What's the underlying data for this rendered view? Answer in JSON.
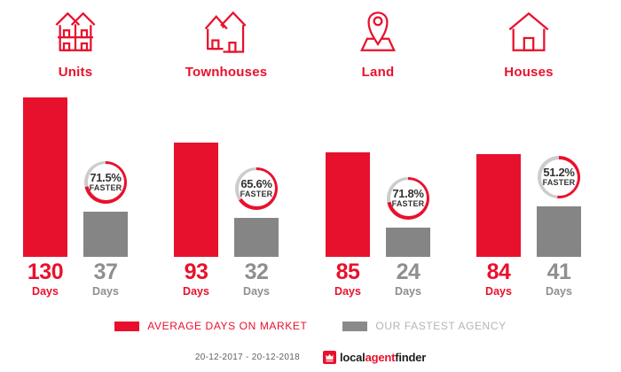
{
  "chart_data": {
    "type": "bar",
    "title": "",
    "categories": [
      "Units",
      "Townhouses",
      "Land",
      "Houses"
    ],
    "series": [
      {
        "name": "AVERAGE DAYS ON MARKET",
        "color": "#e8112d",
        "values": [
          130,
          93,
          85,
          84
        ]
      },
      {
        "name": "OUR FASTEST AGENCY",
        "color": "#858585",
        "values": [
          37,
          32,
          24,
          41
        ]
      }
    ],
    "ylim": [
      0,
      130
    ],
    "grid": false,
    "legend_position": "bottom",
    "unit_label": "Days",
    "groups": [
      {
        "label": "Units",
        "icon": "units-icon",
        "avg_days": 130,
        "fastest_days": 37,
        "faster_pct": 71.5,
        "faster_pct_label": "71.5%",
        "faster_word": "FASTER",
        "days_label": "Days"
      },
      {
        "label": "Townhouses",
        "icon": "townhouses-icon",
        "avg_days": 93,
        "fastest_days": 32,
        "faster_pct": 65.6,
        "faster_pct_label": "65.6%",
        "faster_word": "FASTER",
        "days_label": "Days"
      },
      {
        "label": "Land",
        "icon": "land-icon",
        "avg_days": 85,
        "fastest_days": 24,
        "faster_pct": 71.8,
        "faster_pct_label": "71.8%",
        "faster_word": "FASTER",
        "days_label": "Days"
      },
      {
        "label": "Houses",
        "icon": "houses-icon",
        "avg_days": 84,
        "fastest_days": 41,
        "faster_pct": 51.2,
        "faster_pct_label": "51.2%",
        "faster_word": "FASTER",
        "days_label": "Days"
      }
    ]
  },
  "legend": {
    "items": [
      {
        "label": "AVERAGE DAYS ON MARKET",
        "color": "#e8112d"
      },
      {
        "label": "OUR FASTEST AGENCY",
        "color": "#8a8a8a"
      }
    ]
  },
  "footer": {
    "date_range": "20-12-2017 - 20-12-2018",
    "logo": {
      "part1": "local",
      "part2": "agent",
      "part3": "finder"
    }
  },
  "colors": {
    "accent_red": "#e8112d",
    "bar_gray": "#858585",
    "ring_gray": "#cccccc",
    "badge_text": "#333333",
    "value_gray": "#8f8f8f",
    "legend_gray_text": "#b4b4b4",
    "footer_text": "#5f5f5f",
    "logo_dark": "#1d1d1b"
  }
}
